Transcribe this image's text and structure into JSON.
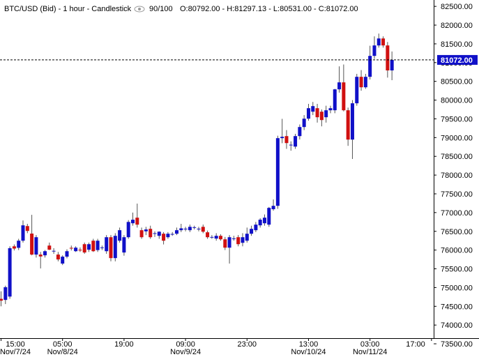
{
  "chart_data": {
    "type": "candlestick",
    "title": "BTC/USD (Bid) - 1 hour - Candlestick",
    "counter": "90/100",
    "ohlc_text": "O:80792.00 - H:81297.13 - L:80531.00 - C:81072.00",
    "up_color": "#1010c8",
    "down_color": "#d01010",
    "ylim": [
      73650,
      82670
    ],
    "xlim": [
      -0.24,
      98.5
    ],
    "yticks": [
      {
        "value": 82500,
        "label": "82500.00"
      },
      {
        "value": 82000,
        "label": "82000.00"
      },
      {
        "value": 81500,
        "label": "81500.00"
      },
      {
        "value": 81000,
        "label": "81000.00"
      },
      {
        "value": 80500,
        "label": "80500.00"
      },
      {
        "value": 80000,
        "label": "80000.00"
      },
      {
        "value": 79500,
        "label": "79500.00"
      },
      {
        "value": 79000,
        "label": "79000.00"
      },
      {
        "value": 78500,
        "label": "78500.00"
      },
      {
        "value": 78000,
        "label": "78000.00"
      },
      {
        "value": 77500,
        "label": "77500.00"
      },
      {
        "value": 77000,
        "label": "77000.00"
      },
      {
        "value": 76500,
        "label": "76500.00"
      },
      {
        "value": 76000,
        "label": "76000.00"
      },
      {
        "value": 75500,
        "label": "75500.00"
      },
      {
        "value": 75000,
        "label": "75000.00"
      },
      {
        "value": 74500,
        "label": "74500.00"
      },
      {
        "value": 74000,
        "label": "74000.00"
      },
      {
        "value": 73500,
        "label": "73500.00"
      }
    ],
    "xticks": [
      {
        "value": 0,
        "label": "15:00"
      },
      {
        "value": 14,
        "label": "05:00"
      },
      {
        "value": 28,
        "label": "19:00"
      },
      {
        "value": 42,
        "label": "09:00"
      },
      {
        "value": 56,
        "label": "23:00"
      },
      {
        "value": 70,
        "label": "13:00"
      },
      {
        "value": 84,
        "label": "03:00"
      },
      {
        "value": 98,
        "label": "17:00"
      }
    ],
    "date_ticks": [
      {
        "value": 0,
        "label": "Nov/7/24"
      },
      {
        "value": 14,
        "label": "Nov/8/24"
      },
      {
        "value": 42,
        "label": "Nov/9/24"
      },
      {
        "value": 70,
        "label": "Nov/10/24"
      },
      {
        "value": 84,
        "label": "Nov/11/24"
      }
    ],
    "last_price": {
      "value": 81072,
      "label": "81072.00"
    },
    "open": [
      74700,
      74670,
      74760,
      76100,
      76060,
      76250,
      76640,
      76440,
      75880,
      75880,
      75860,
      76120,
      75970,
      75880,
      75640,
      75824,
      76060,
      75970,
      76010,
      76157,
      76010,
      76250,
      76000,
      76060,
      75970,
      76343,
      75786,
      76250,
      75935,
      76343,
      76715,
      76864,
      76530,
      76500,
      76566,
      76436,
      76380,
      76436,
      76343,
      76418,
      76436,
      76530,
      76566,
      76530,
      76600,
      76566,
      76620,
      76474,
      76343,
      76306,
      76380,
      76287,
      76064,
      76306,
      76343,
      76194,
      76250,
      76436,
      76530,
      76660,
      76715,
      76678,
      77090,
      77180,
      78985,
      79040,
      78800,
      78760,
      79040,
      79282,
      79505,
      79691,
      79784,
      79691,
      79543,
      79729,
      79729,
      80287,
      80473,
      79729,
      78947,
      79915,
      80621,
      80342,
      80621,
      81179,
      81458,
      81644,
      81458,
      80792
    ],
    "high": [
      74900,
      75050,
      76100,
      76150,
      76300,
      76790,
      76700,
      76940,
      76400,
      75950,
      76000,
      76200,
      76050,
      75950,
      75860,
      76020,
      76120,
      76100,
      76070,
      76200,
      76200,
      76300,
      76300,
      76120,
      76400,
      76400,
      76450,
      76600,
      76400,
      76800,
      77000,
      77240,
      76600,
      76620,
      76650,
      76500,
      76500,
      76480,
      76480,
      76480,
      76600,
      76700,
      76620,
      76680,
      76650,
      76620,
      76680,
      76520,
      76400,
      76450,
      76420,
      76350,
      76400,
      76380,
      76400,
      76450,
      76600,
      76650,
      76750,
      76850,
      76950,
      77150,
      77350,
      79050,
      79500,
      79200,
      78900,
      79100,
      79350,
      79600,
      79900,
      79950,
      79900,
      79750,
      79850,
      79850,
      80300,
      80900,
      80950,
      79800,
      80000,
      80700,
      80800,
      80700,
      81450,
      81700,
      81775,
      81700,
      81550,
      81297.13
    ],
    "low": [
      74500,
      74560,
      74700,
      75990,
      76000,
      76200,
      76450,
      75860,
      75800,
      75510,
      75800,
      76000,
      75900,
      75700,
      75600,
      75780,
      75990,
      75950,
      75950,
      75900,
      75950,
      75950,
      75950,
      76000,
      75900,
      75700,
      75700,
      76200,
      75850,
      76300,
      76650,
      76600,
      76300,
      76400,
      76300,
      76350,
      76300,
      76150,
      76300,
      76380,
      76400,
      76480,
      76500,
      76480,
      76550,
      76500,
      76450,
      76300,
      76300,
      76250,
      76250,
      76000,
      75640,
      76250,
      76100,
      76100,
      76200,
      76380,
      76480,
      76600,
      76650,
      76620,
      77050,
      77100,
      78850,
      78700,
      78650,
      78700,
      78950,
      79200,
      79450,
      79600,
      79400,
      79300,
      79400,
      79650,
      79650,
      80200,
      79700,
      78780,
      78430,
      79850,
      80250,
      80300,
      80550,
      81100,
      81400,
      81400,
      80600,
      80531
    ],
    "close": [
      74650,
      75010,
      76050,
      76040,
      76250,
      76660,
      76510,
      75880,
      76343,
      75830,
      75970,
      76010,
      75980,
      75750,
      75824,
      75970,
      76040,
      76064,
      75990,
      75935,
      76157,
      75970,
      76250,
      76070,
      76343,
      75786,
      76380,
      76530,
      76343,
      76750,
      76810,
      76678,
      76343,
      76550,
      76343,
      76450,
      76490,
      76250,
      76436,
      76430,
      76530,
      76580,
      76570,
      76620,
      76610,
      76570,
      76490,
      76343,
      76350,
      76380,
      76287,
      76064,
      76343,
      76310,
      76157,
      76343,
      76436,
      76566,
      76678,
      76810,
      76864,
      77125,
      77180,
      78985,
      79022,
      78854,
      78810,
      79040,
      79282,
      79505,
      79784,
      79840,
      79543,
      79468,
      79729,
      79784,
      80287,
      80473,
      79729,
      78947,
      79915,
      80621,
      80342,
      80621,
      81179,
      81458,
      81644,
      81458,
      80792,
      81072
    ]
  }
}
